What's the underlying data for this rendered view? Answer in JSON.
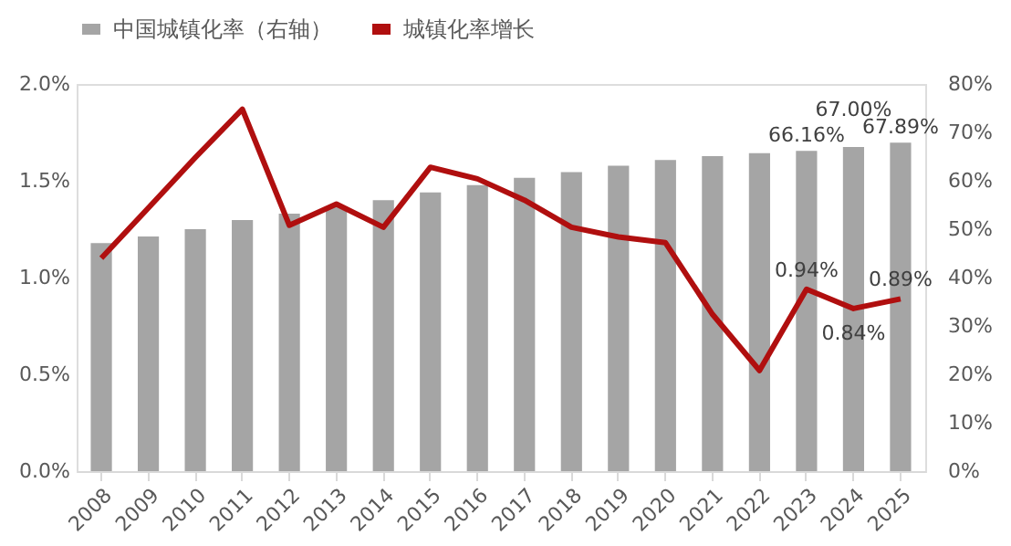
{
  "chart_data": {
    "type": "line",
    "legend": "top",
    "categories": [
      "2008",
      "2009",
      "2010",
      "2011",
      "2012",
      "2013",
      "2014",
      "2015",
      "2016",
      "2017",
      "2018",
      "2019",
      "2020",
      "2021",
      "2022",
      "2023",
      "2024",
      "2025"
    ],
    "ylim": [
      0,
      2
    ],
    "yticks": [
      {
        "value": 0,
        "label": "0.0%"
      },
      {
        "value": 0.5,
        "label": "0.5%"
      },
      {
        "value": 1,
        "label": "1.0%"
      },
      {
        "value": 1.5,
        "label": "1.5%"
      },
      {
        "value": 2,
        "label": "2.0%"
      }
    ],
    "y2lim": [
      0,
      80
    ],
    "y2ticks": [
      {
        "value": 0,
        "label": "0%"
      },
      {
        "value": 10,
        "label": "10%"
      },
      {
        "value": 20,
        "label": "20%"
      },
      {
        "value": 30,
        "label": "30%"
      },
      {
        "value": 40,
        "label": "40%"
      },
      {
        "value": 50,
        "label": "50%"
      },
      {
        "value": 60,
        "label": "60%"
      },
      {
        "value": 70,
        "label": "70%"
      },
      {
        "value": 80,
        "label": "80%"
      }
    ],
    "series": [
      {
        "name": "中国城镇化率（右轴）",
        "type": "bar",
        "axis": "y2",
        "color": "#a5a5a5",
        "values": [
          47.1,
          48.5,
          50.0,
          51.9,
          53.2,
          54.7,
          56.0,
          57.6,
          59.1,
          60.6,
          61.8,
          63.1,
          64.3,
          65.1,
          65.7,
          66.16,
          67.0,
          67.89
        ],
        "value_labels": [
          null,
          null,
          null,
          null,
          null,
          null,
          null,
          null,
          null,
          null,
          null,
          null,
          null,
          null,
          null,
          "66.16%",
          "67.00%",
          "67.89%"
        ]
      },
      {
        "name": "城镇化率增长",
        "color": "#b00f0f",
        "values": [
          1.1,
          1.36,
          1.62,
          1.87,
          1.27,
          1.38,
          1.26,
          1.57,
          1.51,
          1.4,
          1.26,
          1.21,
          1.18,
          0.81,
          0.52,
          0.94,
          0.84,
          0.89
        ],
        "value_labels": [
          null,
          null,
          null,
          null,
          null,
          null,
          null,
          null,
          null,
          null,
          null,
          null,
          null,
          null,
          null,
          "0.94%",
          "0.84%",
          "0.89%"
        ]
      }
    ]
  }
}
